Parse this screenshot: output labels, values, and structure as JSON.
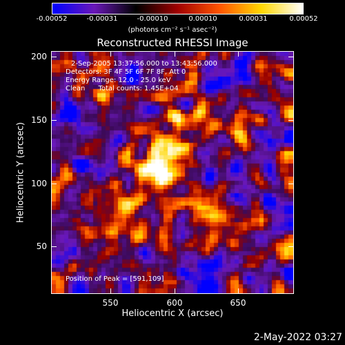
{
  "colorbar": {
    "tick_labels": [
      "-0.00052",
      "-0.00031",
      "-0.00010",
      "0.00010",
      "0.00031",
      "0.00052"
    ],
    "unit": "(photons cm⁻² s⁻¹ asec⁻²)",
    "colors": [
      "#0000ff",
      "#6a18b8",
      "#000000",
      "#a00000",
      "#ff5500",
      "#ffd700",
      "#ffffff"
    ]
  },
  "title": "Reconstructed RHESSI Image",
  "info": {
    "time": "2-Sep-2005 13:37:56.000 to 13:43:56.000",
    "detectors": "Detectors: 3F 4F 5F 6F 7F 8F, Att 0",
    "energy": "Energy Range: 12.0 - 25.0 keV",
    "method": "Clean      Total counts: 1.45E+04",
    "peak": "Position of Peak = [591,109]"
  },
  "axes": {
    "xlabel": "Heliocentric X (arcsec)",
    "ylabel": "Heliocentric Y (arcsec)",
    "x_ticks": [
      "550",
      "600",
      "650"
    ],
    "y_ticks": [
      "200",
      "150",
      "100",
      "50"
    ],
    "xlim": [
      505,
      695
    ],
    "ylim": [
      10,
      205
    ]
  },
  "footer": {
    "datestamp": "2-May-2022 03:27"
  }
}
